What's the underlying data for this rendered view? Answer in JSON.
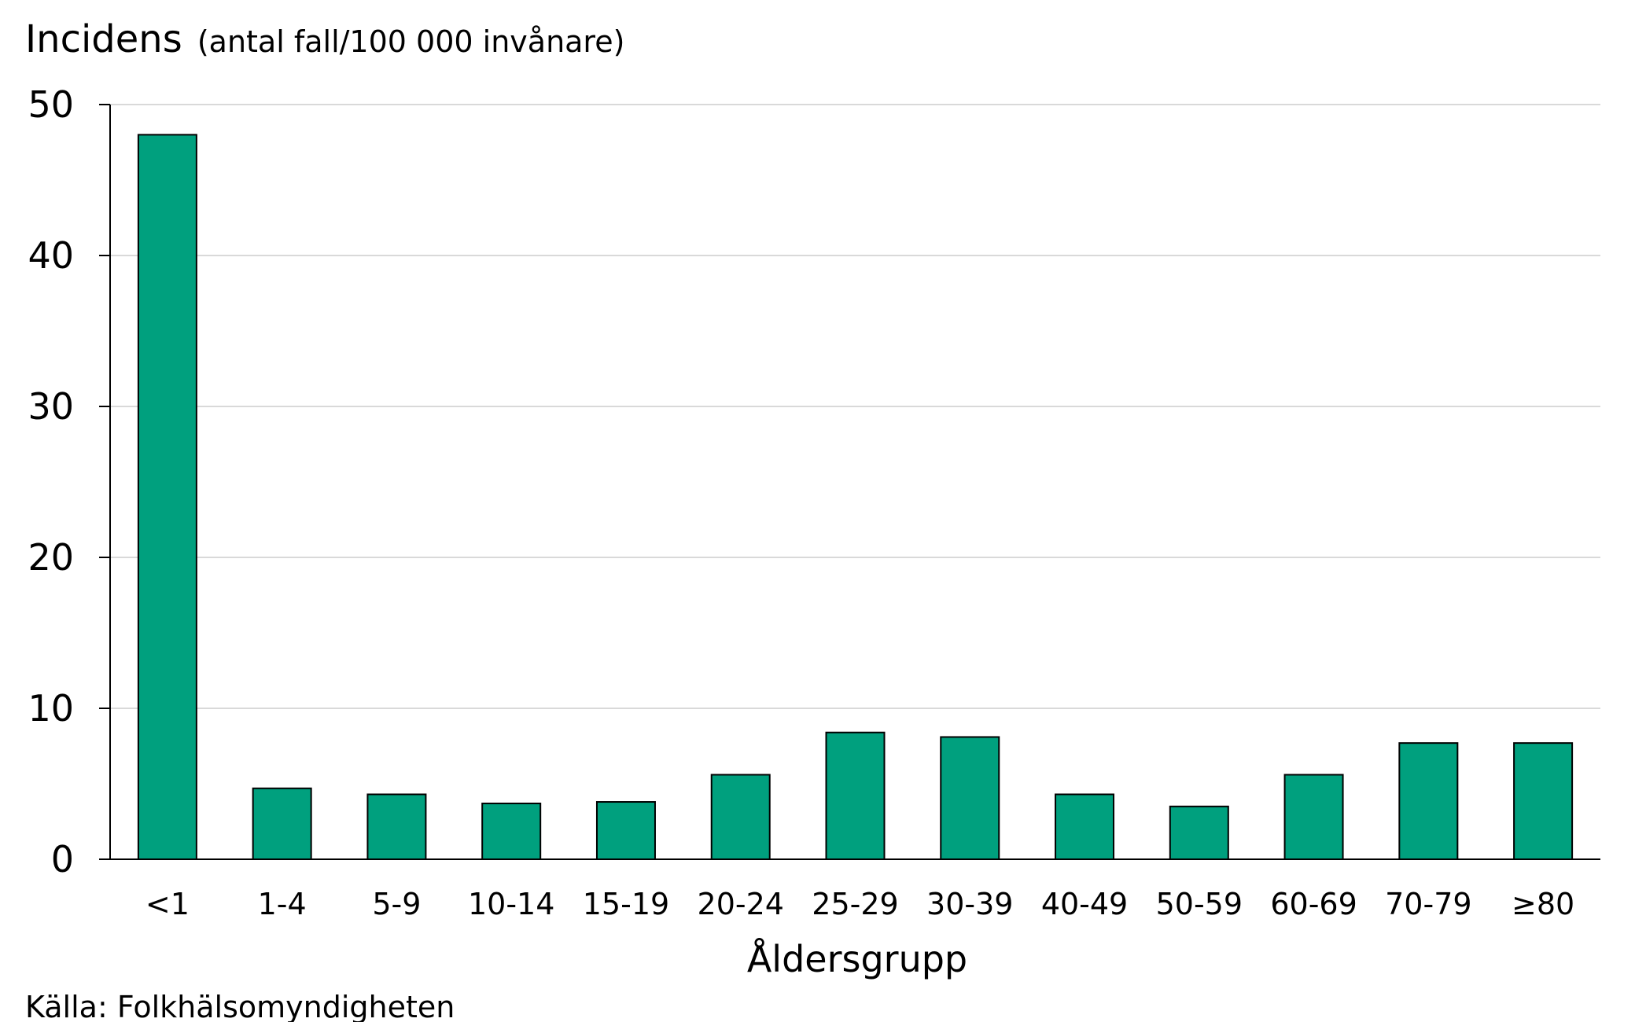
{
  "chart_data": {
    "type": "bar",
    "ylabel": "Incidens",
    "ylabel_unit": "(antal fall/100 000 invånare)",
    "xlabel": "Åldersgrupp",
    "categories": [
      "<1",
      "1-4",
      "5-9",
      "10-14",
      "15-19",
      "20-24",
      "25-29",
      "30-39",
      "40-49",
      "50-59",
      "60-69",
      "70-79",
      "≥80"
    ],
    "values": [
      48.0,
      4.7,
      4.3,
      3.7,
      3.8,
      5.6,
      8.4,
      8.1,
      4.3,
      3.5,
      5.6,
      7.7,
      7.7
    ],
    "ylim": [
      0,
      50
    ],
    "yticks": [
      0,
      10,
      20,
      30,
      40,
      50
    ],
    "grid": true,
    "bar_color": "#00a07e",
    "source": "Källa: Folkhälsomyndigheten"
  }
}
